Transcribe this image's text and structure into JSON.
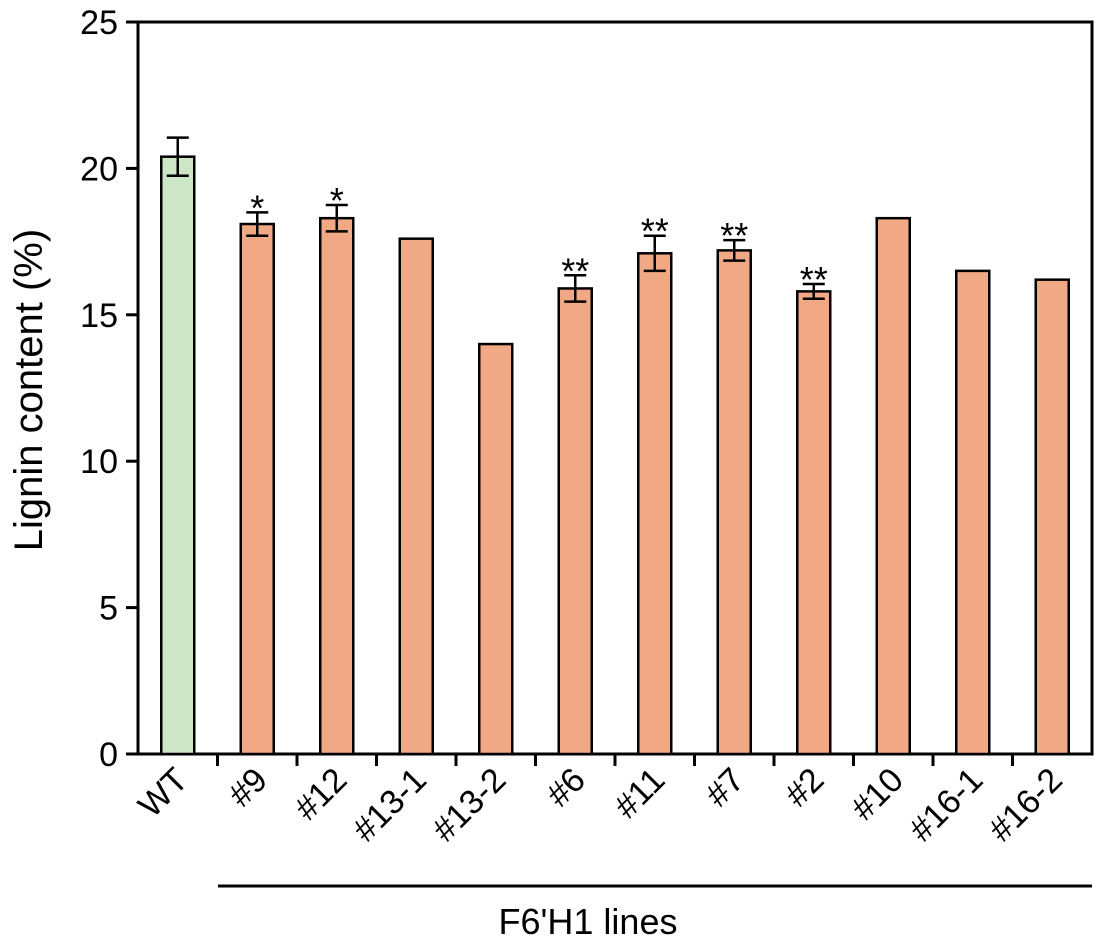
{
  "chart_data": {
    "type": "bar",
    "ylabel": "Lignin content (%)",
    "ylim": [
      0,
      25
    ],
    "yticks": [
      0,
      5,
      10,
      15,
      20,
      25
    ],
    "grid": false,
    "categories": [
      "WT",
      "#9",
      "#12",
      "#13-1",
      "#13-2",
      "#6",
      "#11",
      "#7",
      "#2",
      "#10",
      "#16-1",
      "#16-2"
    ],
    "values": [
      20.4,
      18.1,
      18.3,
      17.6,
      14.0,
      15.9,
      17.1,
      17.2,
      15.8,
      18.3,
      16.5,
      16.2
    ],
    "errors": [
      0.65,
      0.4,
      0.45,
      null,
      null,
      0.45,
      0.6,
      0.35,
      0.25,
      null,
      null,
      null
    ],
    "significance": [
      "",
      "*",
      "*",
      "",
      "",
      "**",
      "**",
      "**",
      "**",
      "",
      "",
      ""
    ],
    "bar_colors": [
      "#cde6c6",
      "#f1a985",
      "#f1a985",
      "#f1a985",
      "#f1a985",
      "#f1a985",
      "#f1a985",
      "#f1a985",
      "#f1a985",
      "#f1a985",
      "#f1a985",
      "#f1a985"
    ],
    "group_label": "F6'H1 lines"
  }
}
